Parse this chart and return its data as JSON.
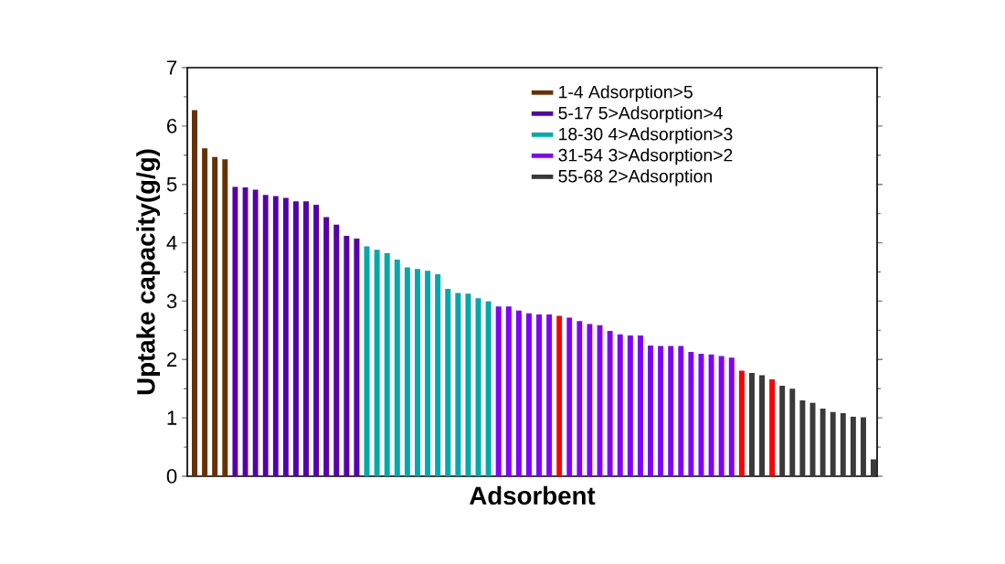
{
  "chart_data": {
    "type": "bar",
    "xlabel": "Adsorbent",
    "ylabel": "Uptake capacity(g/g)",
    "categories": [
      null,
      null,
      null,
      null,
      null,
      null,
      null,
      null,
      null,
      null,
      null,
      null,
      null,
      null,
      null,
      null,
      null,
      null,
      null,
      null,
      null,
      null,
      null,
      null,
      null,
      null,
      null,
      null,
      null,
      null,
      null,
      null,
      null,
      null,
      null,
      null,
      null,
      null,
      null,
      null,
      null,
      null,
      null,
      null,
      null,
      null,
      null,
      null,
      null,
      null,
      null,
      null,
      null,
      null,
      null,
      null,
      null,
      null,
      null,
      null,
      null,
      null,
      null,
      null,
      null,
      null,
      null,
      null
    ],
    "series": [
      {
        "name": "1-4 Adsorption>5",
        "color": "#663300",
        "values": [
          6.27,
          5.62,
          5.47,
          5.43,
          null,
          null,
          null,
          null,
          null,
          null,
          null,
          null,
          null,
          null,
          null,
          null,
          null,
          null,
          null,
          null,
          null,
          null,
          null,
          null,
          null,
          null,
          null,
          null,
          null,
          null,
          null,
          null,
          null,
          null,
          null,
          null,
          null,
          null,
          null,
          null,
          null,
          null,
          null,
          null,
          null,
          null,
          null,
          null,
          null,
          null,
          null,
          null,
          null,
          null,
          null,
          null,
          null,
          null,
          null,
          null,
          null,
          null,
          null,
          null,
          null,
          null,
          null,
          null
        ]
      },
      {
        "name": "5-17 5>Adsorption>4",
        "color": "#5500aa",
        "values": [
          null,
          null,
          null,
          null,
          4.96,
          4.95,
          4.91,
          4.82,
          4.8,
          4.77,
          4.71,
          4.71,
          4.65,
          4.44,
          4.31,
          4.12,
          4.07,
          null,
          null,
          null,
          null,
          null,
          null,
          null,
          null,
          null,
          null,
          null,
          null,
          null,
          null,
          null,
          null,
          null,
          null,
          null,
          null,
          null,
          null,
          null,
          null,
          null,
          null,
          null,
          null,
          null,
          null,
          null,
          null,
          null,
          null,
          null,
          null,
          null,
          null,
          null,
          null,
          null,
          null,
          null,
          null,
          null,
          null,
          null,
          null,
          null,
          null,
          null
        ]
      },
      {
        "name": "18-30 4>Adsorption>3",
        "color": "#00aaaa",
        "values": [
          null,
          null,
          null,
          null,
          null,
          null,
          null,
          null,
          null,
          null,
          null,
          null,
          null,
          null,
          null,
          null,
          null,
          3.94,
          3.88,
          3.82,
          3.71,
          3.58,
          3.55,
          3.52,
          3.46,
          3.21,
          3.14,
          3.13,
          3.05,
          3.0,
          null,
          null,
          null,
          null,
          null,
          null,
          null,
          null,
          null,
          null,
          null,
          null,
          null,
          null,
          null,
          null,
          null,
          null,
          null,
          null,
          null,
          null,
          null,
          null,
          null,
          null,
          null,
          null,
          null,
          null,
          null,
          null,
          null,
          null,
          null,
          null,
          null,
          null
        ]
      },
      {
        "name": "31-54 3>Adsorption>2",
        "color": "#8000ff",
        "colors": [
          null,
          null,
          null,
          null,
          null,
          null,
          null,
          null,
          null,
          null,
          null,
          null,
          null,
          null,
          null,
          null,
          null,
          null,
          null,
          null,
          null,
          null,
          null,
          null,
          null,
          null,
          null,
          null,
          null,
          null,
          "#8000ff",
          "#8000ff",
          "#8000ff",
          "#8000ff",
          "#8000ff",
          "#8000ff",
          "#ff0000",
          "#8000ff",
          "#8000ff",
          "#8000ff",
          "#8000ff",
          "#8000ff",
          "#8000ff",
          "#8000ff",
          "#8000ff",
          "#8000ff",
          "#8000ff",
          "#8000ff",
          "#8000ff",
          "#8000ff",
          "#8000ff",
          "#8000ff",
          "#8000ff",
          "#8000ff",
          null,
          null,
          null,
          null,
          null,
          null,
          null,
          null,
          null,
          null,
          null,
          null,
          null,
          null
        ],
        "values": [
          null,
          null,
          null,
          null,
          null,
          null,
          null,
          null,
          null,
          null,
          null,
          null,
          null,
          null,
          null,
          null,
          null,
          null,
          null,
          null,
          null,
          null,
          null,
          null,
          null,
          null,
          null,
          null,
          null,
          null,
          2.91,
          2.91,
          2.84,
          2.79,
          2.77,
          2.77,
          2.75,
          2.72,
          2.66,
          2.61,
          2.59,
          2.49,
          2.43,
          2.41,
          2.41,
          2.24,
          2.23,
          2.23,
          2.23,
          2.13,
          2.1,
          2.09,
          2.06,
          2.03,
          null,
          null,
          null,
          null,
          null,
          null,
          null,
          null,
          null,
          null,
          null,
          null,
          null,
          null
        ]
      },
      {
        "name": "55-68 2>Adsorption",
        "color": "#3a3a3a",
        "colors": [
          null,
          null,
          null,
          null,
          null,
          null,
          null,
          null,
          null,
          null,
          null,
          null,
          null,
          null,
          null,
          null,
          null,
          null,
          null,
          null,
          null,
          null,
          null,
          null,
          null,
          null,
          null,
          null,
          null,
          null,
          null,
          null,
          null,
          null,
          null,
          null,
          null,
          null,
          null,
          null,
          null,
          null,
          null,
          null,
          null,
          null,
          null,
          null,
          null,
          null,
          null,
          null,
          null,
          null,
          "#ff0000",
          "#3a3a3a",
          "#3a3a3a",
          "#ff0000",
          "#3a3a3a",
          "#3a3a3a",
          "#3a3a3a",
          "#3a3a3a",
          "#3a3a3a",
          "#3a3a3a",
          "#3a3a3a",
          "#3a3a3a",
          "#3a3a3a",
          "#3a3a3a"
        ],
        "values": [
          null,
          null,
          null,
          null,
          null,
          null,
          null,
          null,
          null,
          null,
          null,
          null,
          null,
          null,
          null,
          null,
          null,
          null,
          null,
          null,
          null,
          null,
          null,
          null,
          null,
          null,
          null,
          null,
          null,
          null,
          null,
          null,
          null,
          null,
          null,
          null,
          null,
          null,
          null,
          null,
          null,
          null,
          null,
          null,
          null,
          null,
          null,
          null,
          null,
          null,
          null,
          null,
          null,
          null,
          1.81,
          1.77,
          1.73,
          1.66,
          1.55,
          1.5,
          1.3,
          1.26,
          1.16,
          1.1,
          1.08,
          1.02,
          1.01,
          0.29
        ]
      }
    ],
    "stacked": true,
    "ylim": [
      0,
      7
    ],
    "yticks": [
      0,
      1,
      2,
      3,
      4,
      5,
      6,
      7
    ],
    "legend": "top right",
    "grid": false
  }
}
